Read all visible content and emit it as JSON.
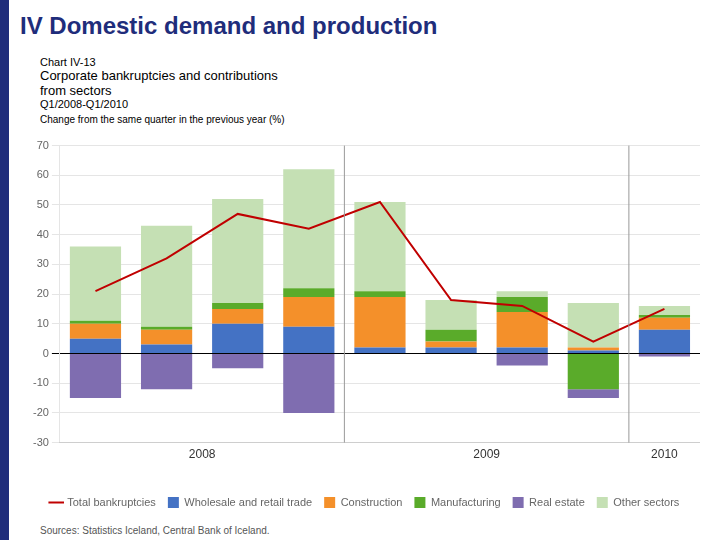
{
  "chart_data": {
    "type": "bar",
    "stacked": true,
    "title": "IV Domestic demand and production",
    "title_color": "#1f2d7b",
    "stripe_color": "#1f2d7b",
    "chart_label": "Chart IV-13",
    "chart_title": [
      "Corporate bankruptcies and contributions",
      "from sectors"
    ],
    "subtitle": "Q1/2008-Q1/2010",
    "ylabel": "Change from the same quarter in the previous year (%)",
    "source": "Sources: Statistics Iceland, Central Bank of Iceland.",
    "categories": [
      null,
      null,
      null,
      null,
      null,
      null,
      null,
      null,
      null
    ],
    "category_groups": [
      {
        "label": "2008",
        "size": 4
      },
      {
        "label": "2009",
        "size": 4
      },
      {
        "label": "2010",
        "size": 1
      }
    ],
    "series": [
      {
        "name": "Total bankruptcies",
        "type": "line",
        "color": "#c00000",
        "values": [
          21,
          32,
          47,
          42,
          51,
          18,
          16,
          4,
          15
        ]
      },
      {
        "name": "Wholesale and retail trade",
        "color": "#4472c4",
        "values": [
          5,
          3,
          10,
          9,
          2,
          2,
          2,
          1,
          8
        ]
      },
      {
        "name": "Construction",
        "color": "#f4902a",
        "values": [
          5,
          5,
          5,
          10,
          17,
          2,
          12,
          1,
          4
        ]
      },
      {
        "name": "Manufacturing",
        "color": "#5aab2a",
        "values": [
          1,
          1,
          2,
          3,
          2,
          4,
          5,
          -12,
          1
        ]
      },
      {
        "name": "Real estate",
        "color": "#7f6db0",
        "values": [
          -15,
          -12,
          -5,
          -20,
          0,
          0,
          -4,
          -3,
          -1
        ]
      },
      {
        "name": "Other sectors",
        "color": "#c5e0b4",
        "values": [
          25,
          34,
          35,
          40,
          30,
          10,
          2,
          15,
          3
        ]
      }
    ],
    "ylim": [
      -30,
      70
    ],
    "yticks": [
      -30,
      -20,
      -10,
      0,
      10,
      20,
      30,
      40,
      50,
      60,
      70
    ],
    "grid": true,
    "legend": "bottom"
  }
}
